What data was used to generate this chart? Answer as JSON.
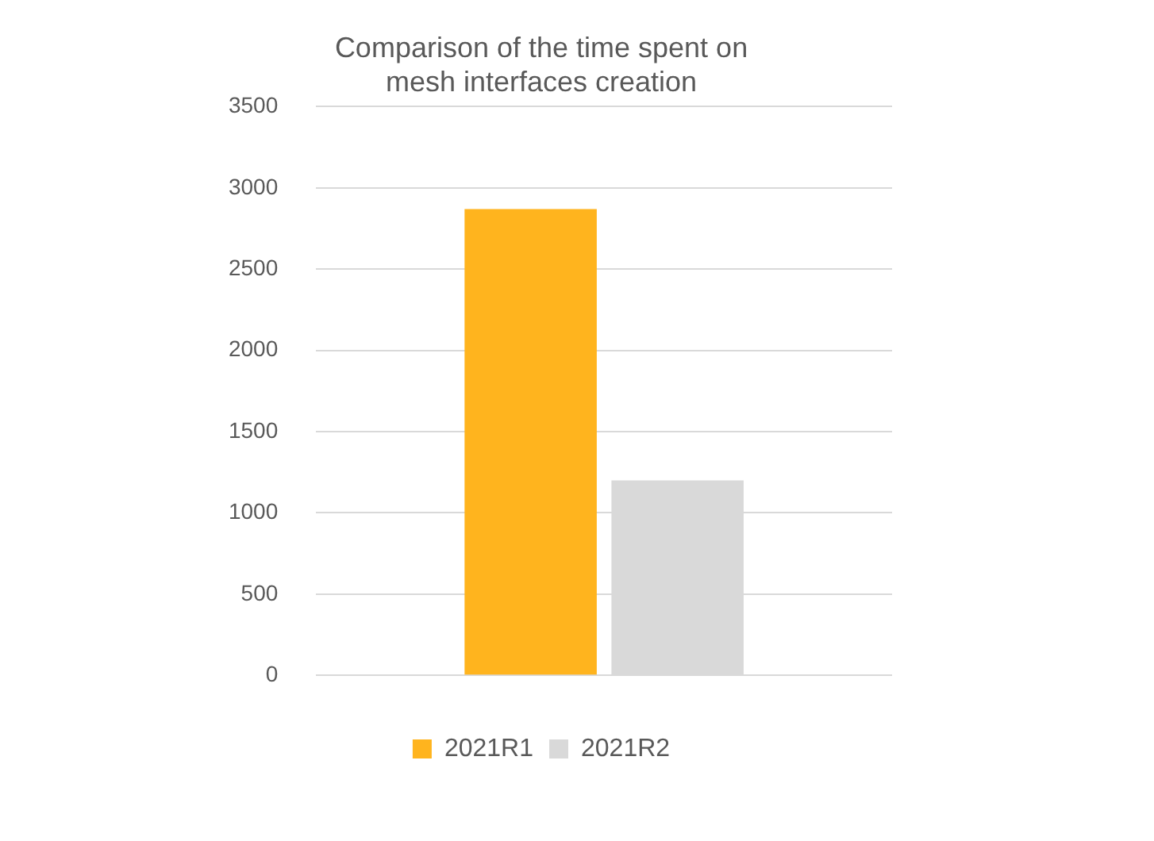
{
  "chart_data": {
    "type": "bar",
    "title": "Comparison of the time spent on\nmesh interfaces creation",
    "categories": [
      null
    ],
    "series": [
      {
        "name": "2021R1",
        "color": "#ffb41e",
        "values": [
          2870
        ]
      },
      {
        "name": "2021R2",
        "color": "#d9d9d9",
        "values": [
          1200
        ]
      }
    ],
    "ylim": [
      0,
      3500
    ],
    "yticks": [
      0,
      500,
      1000,
      1500,
      2000,
      2500,
      3000,
      3500
    ],
    "grid": "y",
    "legend": "bottom"
  }
}
